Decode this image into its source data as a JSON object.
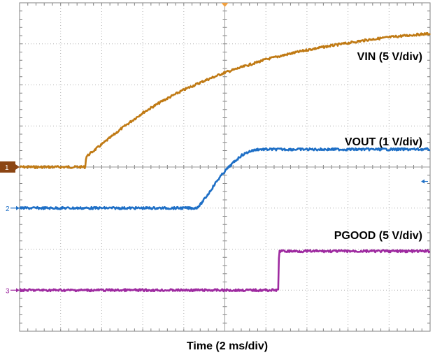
{
  "chart_data": {
    "type": "line",
    "title": "",
    "xlabel": "Time (2 ms/div)",
    "ylabel": "",
    "grid": true,
    "x_divisions": 10,
    "y_divisions": 8,
    "xlim": [
      0,
      10
    ],
    "ylim": [
      0,
      8
    ],
    "trigger_marker": {
      "x": 5
    },
    "series": [
      {
        "name": "VIN (5 V/div)",
        "channel": "1",
        "color": "#C07A14",
        "baseline": 4.0,
        "x": [
          0,
          1.5,
          1.6,
          1.62,
          2.0,
          2.5,
          3.0,
          3.5,
          4.0,
          4.5,
          5.0,
          5.5,
          6.0,
          6.5,
          7.0,
          7.5,
          8.0,
          8.5,
          9.0,
          9.5,
          10.0
        ],
        "values": [
          4.0,
          4.0,
          4.0,
          4.25,
          4.55,
          4.95,
          5.32,
          5.62,
          5.88,
          6.1,
          6.3,
          6.46,
          6.62,
          6.74,
          6.85,
          6.94,
          7.02,
          7.1,
          7.16,
          7.21,
          7.25
        ]
      },
      {
        "name": "VOUT (1 V/div)",
        "channel": "2",
        "color": "#1E6FC6",
        "baseline": 3.0,
        "x": [
          0,
          4.3,
          4.4,
          4.6,
          4.8,
          5.0,
          5.2,
          5.4,
          5.6,
          5.8,
          6.0,
          10.0
        ],
        "values": [
          3.0,
          3.0,
          3.08,
          3.35,
          3.65,
          3.9,
          4.1,
          4.28,
          4.38,
          4.43,
          4.43,
          4.43
        ]
      },
      {
        "name": "PGOOD (5 V/div)",
        "channel": "3",
        "color": "#9E2AA0",
        "baseline": 1.0,
        "x": [
          0,
          6.3,
          6.32,
          10.0
        ],
        "values": [
          1.0,
          1.0,
          1.95,
          1.95
        ]
      }
    ],
    "offset_arrow": {
      "y": 3.65,
      "color": "#1E6FC6"
    }
  }
}
